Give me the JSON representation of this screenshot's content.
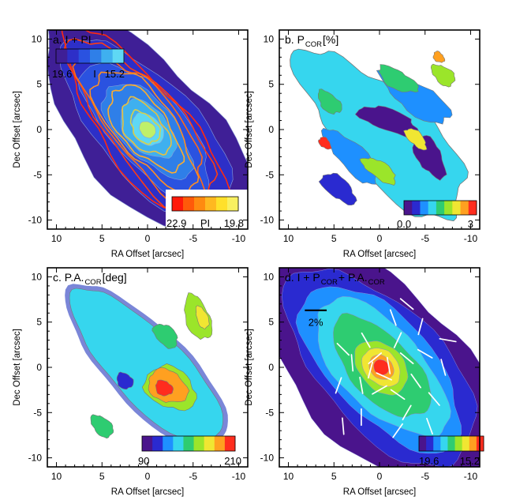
{
  "chart_data": [
    {
      "type": "heatmap",
      "title": "a. I + PI",
      "xlabel": "RA Offset [arcsec]",
      "ylabel": "Dec Offset [arcsec]",
      "xlim": [
        11,
        -11
      ],
      "ylim": [
        -11,
        11
      ],
      "xticks": [
        10,
        5,
        0,
        -5,
        -10
      ],
      "yticks": [
        10,
        5,
        0,
        -5,
        -10
      ],
      "colorbar": {
        "scale": "blue-cyan",
        "min_label": "19.6",
        "mid_label": "I",
        "max_label": "15.2",
        "placement": "top-left"
      },
      "colorbar2": {
        "scale": "red-yellow",
        "min_label": "22.9",
        "mid_label": "PI",
        "max_label": "19.8",
        "placement": "bottom-right"
      }
    },
    {
      "type": "heatmap",
      "title": "b. P",
      "title_sub": "COR",
      "title_suffix": " [%]",
      "xlabel": "RA Offset [arcsec]",
      "ylabel": "Dec Offset [arcsec]",
      "xlim": [
        11,
        -11
      ],
      "ylim": [
        -11,
        11
      ],
      "xticks": [
        10,
        5,
        0,
        -5,
        -10
      ],
      "yticks": [
        10,
        5,
        0,
        -5,
        -10
      ],
      "colorbar": {
        "scale": "rainbow",
        "min_label": "0.0",
        "max_label": "3",
        "placement": "bottom-right"
      }
    },
    {
      "type": "heatmap",
      "title": "c. P.A.",
      "title_sub": "COR",
      "title_suffix": " [deg]",
      "xlabel": "RA Offset [arcsec]",
      "ylabel": "Dec Offset [arcsec]",
      "xlim": [
        11,
        -11
      ],
      "ylim": [
        -11,
        11
      ],
      "xticks": [
        10,
        5,
        0,
        -5,
        -10
      ],
      "yticks": [
        10,
        5,
        0,
        -5,
        -10
      ],
      "colorbar": {
        "scale": "rainbow",
        "min_label": "90",
        "max_label": "210",
        "placement": "bottom-right"
      }
    },
    {
      "type": "heatmap",
      "title": "d. I + P",
      "title_sub": "COR",
      "title_mid": " + P.A.",
      "title_sub2": "COR",
      "xlabel": "RA Offset [arcsec]",
      "ylabel": "Dec Offset [arcsec]",
      "xlim": [
        11,
        -11
      ],
      "ylim": [
        -11,
        11
      ],
      "xticks": [
        10,
        5,
        0,
        -5,
        -10
      ],
      "yticks": [
        10,
        5,
        0,
        -5,
        -10
      ],
      "scale_bar_label": "2%",
      "colorbar": {
        "scale": "rainbow",
        "min_label": "19.6",
        "max_label": "15.2",
        "placement": "bottom-right"
      }
    }
  ]
}
